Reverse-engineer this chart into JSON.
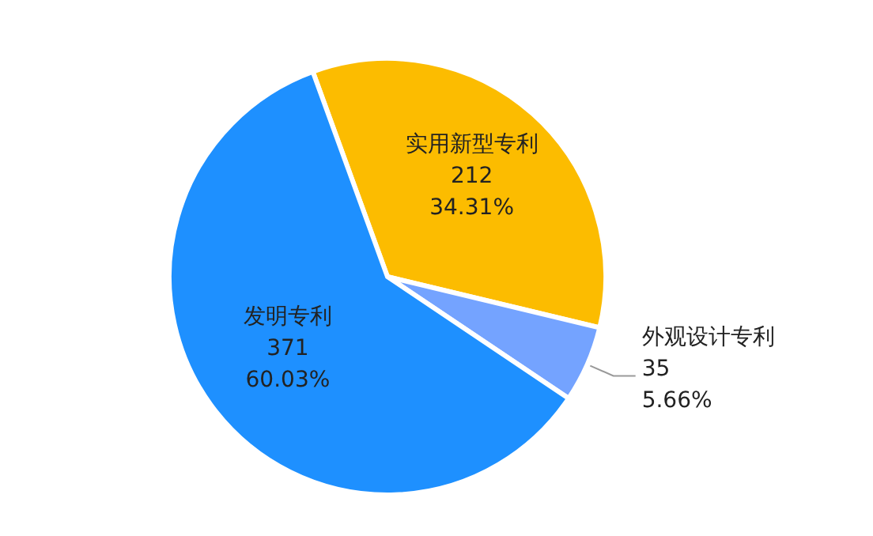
{
  "chart_data": {
    "type": "pie",
    "categories": [
      "实用新型专利",
      "外观设计专利",
      "发明专利"
    ],
    "values": [
      34.31,
      5.66,
      60.03
    ],
    "colors": [
      "#fcbc00",
      "#74a3ff",
      "#1e90ff"
    ],
    "value_labels": [
      "212\n34.31%",
      "35\n5.66%",
      "371\n60.03%"
    ],
    "legend": false
  }
}
